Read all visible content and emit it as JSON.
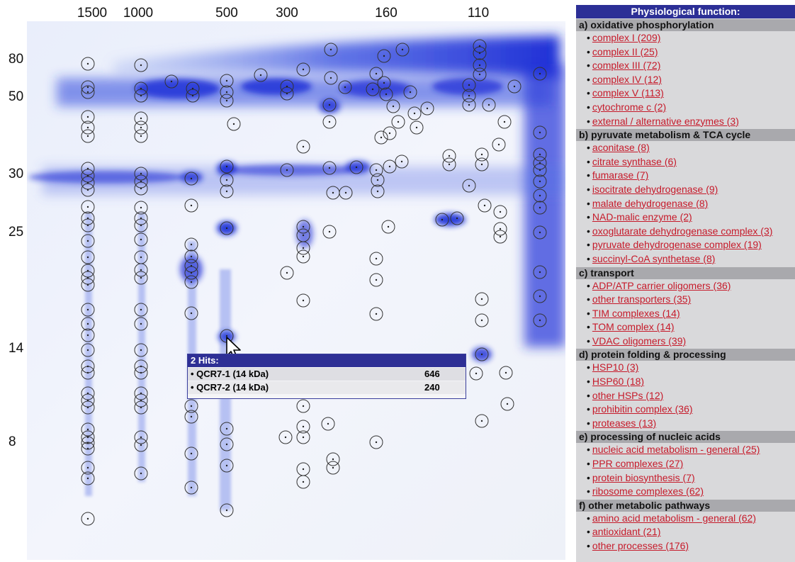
{
  "gel": {
    "mw_axis_top": [
      "1500",
      "1000",
      "500",
      "300",
      "160",
      "110"
    ],
    "mw_axis_left": [
      "80",
      "50",
      "30",
      "25",
      "14",
      "8"
    ],
    "colors": {
      "gel_bg": "#eef1fb",
      "spot": "#1a28d8",
      "circle": "#333333"
    }
  },
  "tooltip": {
    "title": "2 Hits:",
    "hits": [
      {
        "name": "QCR7-1 (14 kDa)",
        "score": "646"
      },
      {
        "name": "QCR7-2 (14 kDa)",
        "score": "240"
      }
    ]
  },
  "panel": {
    "title": "Physiological function:",
    "categories": [
      {
        "label": "a) oxidative phosphorylation",
        "items": [
          "complex I (209)",
          "complex II (25)",
          "complex III (72)",
          "complex IV (12)",
          "complex V (113)",
          "cytochrome c (2)",
          "external / alternative enzymes (3)"
        ]
      },
      {
        "label": "b) pyruvate metabolism & TCA cycle",
        "items": [
          "aconitase (8)",
          "citrate synthase (6)",
          "fumarase (7)",
          "isocitrate dehydrogenase (9)",
          "malate dehydrogenase (8)",
          "NAD-malic enzyme (2)",
          "oxoglutarate dehydrogenase complex (3)",
          "pyruvate dehydrogenase complex (19)",
          "succinyl-CoA synthetase (8)"
        ]
      },
      {
        "label": "c) transport",
        "items": [
          "ADP/ATP carrier oligomers (36)",
          "other transporters (35)",
          "TIM complexes (14)",
          "TOM complex (14)",
          "VDAC oligomers (39)"
        ]
      },
      {
        "label": "d) protein folding & processing",
        "items": [
          "HSP10 (3)",
          "HSP60 (18)",
          "other HSPs (12)",
          "prohibitin complex (36)",
          "proteases (13)"
        ]
      },
      {
        "label": "e) processing of nucleic acids",
        "items": [
          "nucleic acid metabolism - general (25)",
          "PPR complexes (27)",
          "protein biosynthesis (7)",
          "ribosome complexes (62)"
        ]
      },
      {
        "label": "f) other metabolic pathways",
        "items": [
          "amino acid metabolism - general (62)",
          "antioxidant (21)",
          "other processes (176)"
        ]
      }
    ]
  }
}
